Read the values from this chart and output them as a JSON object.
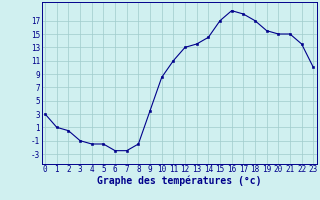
{
  "x": [
    0,
    1,
    2,
    3,
    4,
    5,
    6,
    7,
    8,
    9,
    10,
    11,
    12,
    13,
    14,
    15,
    16,
    17,
    18,
    19,
    20,
    21,
    22,
    23
  ],
  "y": [
    3,
    1,
    0.5,
    -1,
    -1.5,
    -1.5,
    -2.5,
    -2.5,
    -1.5,
    3.5,
    8.5,
    11,
    13,
    13.5,
    14.5,
    17,
    18.5,
    18,
    17,
    15.5,
    15,
    15,
    13.5,
    10
  ],
  "line_color": "#00008B",
  "marker_color": "#00008B",
  "bg_color": "#d0f0f0",
  "grid_color": "#a0cccc",
  "xlabel": "Graphe des températures (°c)",
  "xlabel_color": "#00008B",
  "yticks": [
    -3,
    -1,
    1,
    3,
    5,
    7,
    9,
    11,
    13,
    15,
    17
  ],
  "ylim": [
    -4.5,
    19.8
  ],
  "xlim": [
    -0.3,
    23.3
  ],
  "xticks": [
    0,
    1,
    2,
    3,
    4,
    5,
    6,
    7,
    8,
    9,
    10,
    11,
    12,
    13,
    14,
    15,
    16,
    17,
    18,
    19,
    20,
    21,
    22,
    23
  ],
  "tick_fontsize": 5.5,
  "xlabel_fontsize": 7.0,
  "xlabel_fontweight": "bold"
}
